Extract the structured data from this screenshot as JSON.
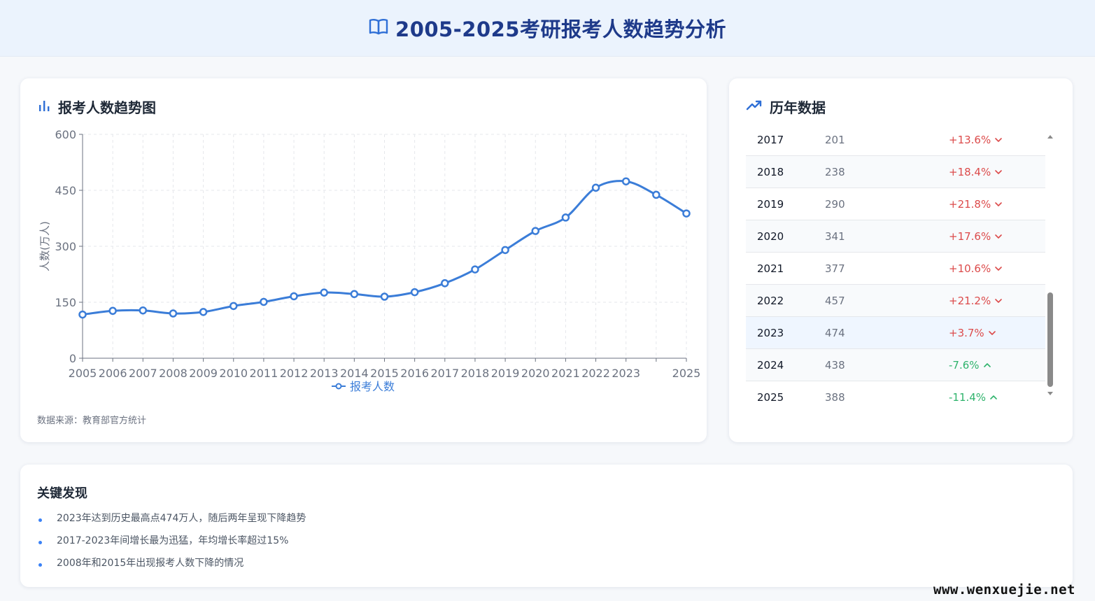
{
  "header": {
    "title": "2005-2025考研报考人数趋势分析",
    "icon": "book-open-icon"
  },
  "chart_card": {
    "title": "报考人数趋势图",
    "icon": "bar-chart-icon",
    "source": "数据来源：教育部官方统计"
  },
  "chart_data": {
    "type": "line",
    "x": [
      2005,
      2006,
      2007,
      2008,
      2009,
      2010,
      2011,
      2012,
      2013,
      2014,
      2015,
      2016,
      2017,
      2018,
      2019,
      2020,
      2021,
      2022,
      2023,
      2024,
      2025
    ],
    "x_tick_labels": [
      "2005",
      "2006",
      "2007",
      "2008",
      "2009",
      "2010",
      "2011",
      "2012",
      "2013",
      "2014",
      "2015",
      "2016",
      "2017",
      "2018",
      "2019",
      "2020",
      "2021",
      "2022",
      "2023",
      "",
      "2025"
    ],
    "series": [
      {
        "name": "报考人数",
        "color": "#3b7dd8",
        "values": [
          117,
          127,
          128,
          120,
          124,
          140,
          151,
          166,
          176,
          172,
          165,
          177,
          201,
          238,
          290,
          341,
          377,
          457,
          474,
          438,
          388
        ]
      }
    ],
    "ylabel": "人数(万人)",
    "xlabel": "",
    "ylim": [
      0,
      600
    ],
    "yticks": [
      0,
      150,
      300,
      450,
      600
    ],
    "grid": true,
    "legend": "bottom-center",
    "smooth": true
  },
  "data_card": {
    "title": "历年数据",
    "icon": "trending-up-icon",
    "rows": [
      {
        "year": "2017",
        "count": "201",
        "change": "+13.6%",
        "dir": "up"
      },
      {
        "year": "2018",
        "count": "238",
        "change": "+18.4%",
        "dir": "up"
      },
      {
        "year": "2019",
        "count": "290",
        "change": "+21.8%",
        "dir": "up"
      },
      {
        "year": "2020",
        "count": "341",
        "change": "+17.6%",
        "dir": "up"
      },
      {
        "year": "2021",
        "count": "377",
        "change": "+10.6%",
        "dir": "up"
      },
      {
        "year": "2022",
        "count": "457",
        "change": "+21.2%",
        "dir": "up"
      },
      {
        "year": "2023",
        "count": "474",
        "change": "+3.7%",
        "dir": "up",
        "highlight": true
      },
      {
        "year": "2024",
        "count": "438",
        "change": "-7.6%",
        "dir": "down"
      },
      {
        "year": "2025",
        "count": "388",
        "change": "-11.4%",
        "dir": "down"
      }
    ],
    "colors": {
      "up": "#dc4b4b",
      "down": "#2fb36c"
    }
  },
  "findings": {
    "title": "关键发现",
    "items": [
      "2023年达到历史最高点474万人，随后两年呈现下降趋势",
      "2017-2023年间增长最为迅猛，年均增长率超过15%",
      "2008年和2015年出现报考人数下降的情况"
    ]
  },
  "watermark": "www.wenxuejie.net"
}
